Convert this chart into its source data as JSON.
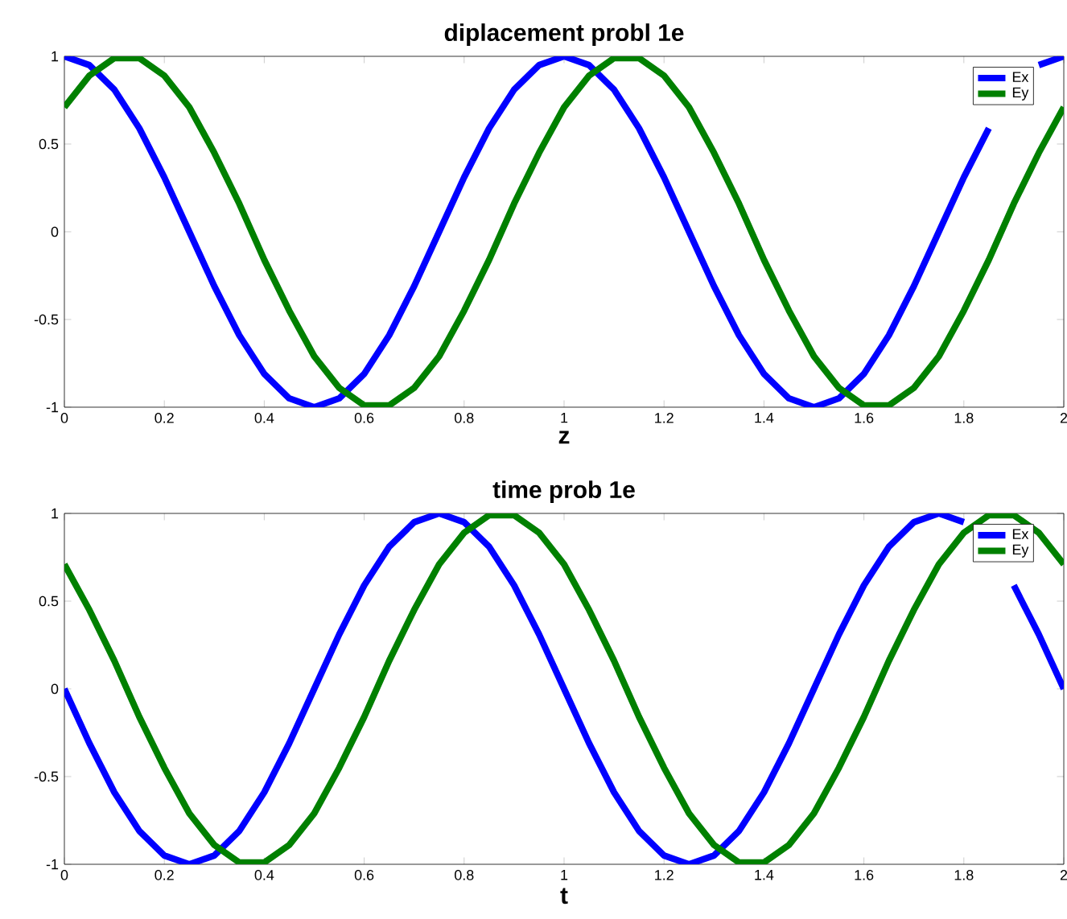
{
  "chart_data": [
    {
      "type": "line",
      "title": "diplacement probl 1e",
      "xlabel": "z",
      "x": [
        0,
        0.05,
        0.1,
        0.15,
        0.2,
        0.25,
        0.3,
        0.35,
        0.4,
        0.45,
        0.5,
        0.55,
        0.6,
        0.65,
        0.7,
        0.75,
        0.8,
        0.85,
        0.9,
        0.95,
        1,
        1.05,
        1.1,
        1.15,
        1.2,
        1.25,
        1.3,
        1.35,
        1.4,
        1.45,
        1.5,
        1.55,
        1.6,
        1.65,
        1.7,
        1.75,
        1.8,
        1.85,
        1.9,
        1.95,
        2
      ],
      "series": [
        {
          "name": "Ex",
          "color": "#0000ff",
          "values": [
            1,
            0.95,
            0.81,
            0.59,
            0.31,
            0,
            -0.31,
            -0.59,
            -0.81,
            -0.95,
            -1,
            -0.95,
            -0.81,
            -0.59,
            -0.31,
            0,
            0.31,
            0.59,
            0.81,
            0.95,
            1,
            0.95,
            0.81,
            0.59,
            0.31,
            0,
            -0.31,
            -0.59,
            -0.81,
            -0.95,
            -1,
            -0.95,
            -0.81,
            -0.59,
            -0.31,
            0,
            0.31,
            0.59,
            null,
            0.95,
            1
          ]
        },
        {
          "name": "Ey",
          "color": "#008000",
          "values": [
            0.71,
            0.89,
            0.99,
            0.99,
            0.89,
            0.71,
            0.45,
            0.16,
            -0.16,
            -0.45,
            -0.71,
            -0.89,
            -0.99,
            -0.99,
            -0.89,
            -0.71,
            -0.45,
            -0.16,
            0.16,
            0.45,
            0.71,
            0.89,
            0.99,
            0.99,
            0.89,
            0.71,
            0.45,
            0.16,
            -0.16,
            -0.45,
            -0.71,
            -0.89,
            -0.99,
            -0.99,
            -0.89,
            -0.71,
            -0.45,
            -0.16,
            0.16,
            0.45,
            0.71
          ]
        }
      ],
      "xlim": [
        0,
        2
      ],
      "ylim": [
        -1,
        1
      ],
      "xticks": [
        0,
        0.2,
        0.4,
        0.6,
        0.8,
        1,
        1.2,
        1.4,
        1.6,
        1.8,
        2
      ],
      "yticks": [
        -1,
        -0.5,
        0,
        0.5,
        1
      ],
      "legend": "top right",
      "marker": "none",
      "line_style": "solid",
      "grid": false
    },
    {
      "type": "line",
      "title": "time prob 1e",
      "xlabel": "t",
      "x": [
        0,
        0.05,
        0.1,
        0.15,
        0.2,
        0.25,
        0.3,
        0.35,
        0.4,
        0.45,
        0.5,
        0.55,
        0.6,
        0.65,
        0.7,
        0.75,
        0.8,
        0.85,
        0.9,
        0.95,
        1,
        1.05,
        1.1,
        1.15,
        1.2,
        1.25,
        1.3,
        1.35,
        1.4,
        1.45,
        1.5,
        1.55,
        1.6,
        1.65,
        1.7,
        1.75,
        1.8,
        1.85,
        1.9,
        1.95,
        2
      ],
      "series": [
        {
          "name": "Ex",
          "color": "#0000ff",
          "values": [
            0,
            -0.31,
            -0.59,
            -0.81,
            -0.95,
            -1,
            -0.95,
            -0.81,
            -0.59,
            -0.31,
            0,
            0.31,
            0.59,
            0.81,
            0.95,
            1,
            0.95,
            0.81,
            0.59,
            0.31,
            0,
            -0.31,
            -0.59,
            -0.81,
            -0.95,
            -1,
            -0.95,
            -0.81,
            -0.59,
            -0.31,
            0,
            0.31,
            0.59,
            0.81,
            0.95,
            1,
            0.95,
            null,
            0.59,
            0.31,
            0
          ]
        },
        {
          "name": "Ey",
          "color": "#008000",
          "values": [
            0.71,
            0.45,
            0.16,
            -0.16,
            -0.45,
            -0.71,
            -0.89,
            -0.99,
            -0.99,
            -0.89,
            -0.71,
            -0.45,
            -0.16,
            0.16,
            0.45,
            0.71,
            0.89,
            0.99,
            0.99,
            0.89,
            0.71,
            0.45,
            0.16,
            -0.16,
            -0.45,
            -0.71,
            -0.89,
            -0.99,
            -0.99,
            -0.89,
            -0.71,
            -0.45,
            -0.16,
            0.16,
            0.45,
            0.71,
            0.89,
            0.99,
            0.99,
            0.89,
            0.71
          ]
        }
      ],
      "xlim": [
        0,
        2
      ],
      "ylim": [
        -1,
        1
      ],
      "xticks": [
        0,
        0.2,
        0.4,
        0.6,
        0.8,
        1,
        1.2,
        1.4,
        1.6,
        1.8,
        2
      ],
      "yticks": [
        -1,
        -0.5,
        0,
        0.5,
        1
      ],
      "legend": "top right",
      "marker": "none",
      "line_style": "solid",
      "grid": false
    }
  ]
}
